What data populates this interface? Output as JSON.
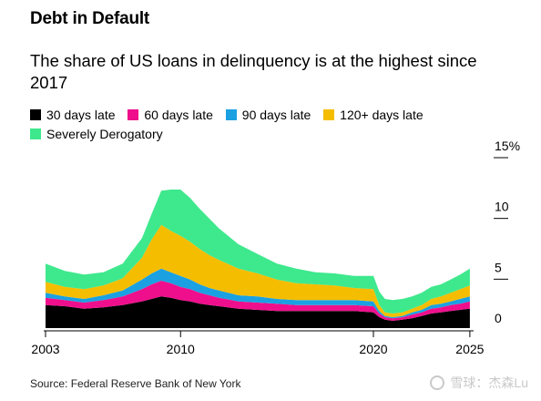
{
  "title": "Debt in Default",
  "subtitle": "The share of US loans in delinquency is at the highest since 2017",
  "source": "Source: Federal Reserve Bank of New York",
  "watermark": "雪球：杰森Lu",
  "chart_data": {
    "type": "area",
    "stacked": true,
    "x": [
      2003.0,
      2004.0,
      2005.0,
      2006.0,
      2007.0,
      2008.0,
      2008.5,
      2009.0,
      2009.5,
      2010.0,
      2010.5,
      2011.0,
      2011.5,
      2012.0,
      2013.0,
      2014.0,
      2015.0,
      2016.0,
      2017.0,
      2018.0,
      2019.0,
      2020.0,
      2020.3,
      2020.6,
      2021.0,
      2021.5,
      2022.0,
      2022.5,
      2023.0,
      2023.5,
      2024.0,
      2024.5,
      2025.0
    ],
    "series": [
      {
        "name": "30 days late",
        "color": "#000000",
        "values": [
          1.9,
          1.8,
          1.6,
          1.7,
          1.9,
          2.2,
          2.4,
          2.6,
          2.5,
          2.3,
          2.2,
          2.0,
          1.9,
          1.8,
          1.6,
          1.5,
          1.4,
          1.4,
          1.4,
          1.4,
          1.4,
          1.3,
          0.9,
          0.7,
          0.6,
          0.7,
          0.8,
          1.0,
          1.2,
          1.3,
          1.4,
          1.5,
          1.6
        ]
      },
      {
        "name": "60 days late",
        "color": "#ef0f8c",
        "values": [
          0.6,
          0.5,
          0.5,
          0.6,
          0.7,
          1.0,
          1.2,
          1.3,
          1.2,
          1.1,
          1.0,
          0.9,
          0.8,
          0.7,
          0.6,
          0.6,
          0.6,
          0.5,
          0.5,
          0.5,
          0.5,
          0.5,
          0.3,
          0.2,
          0.2,
          0.2,
          0.3,
          0.3,
          0.4,
          0.4,
          0.5,
          0.5,
          0.6
        ]
      },
      {
        "name": "90 days late",
        "color": "#1ba1e2",
        "values": [
          0.4,
          0.3,
          0.3,
          0.4,
          0.5,
          0.8,
          0.9,
          1.0,
          0.9,
          0.9,
          0.8,
          0.7,
          0.6,
          0.6,
          0.5,
          0.5,
          0.4,
          0.4,
          0.4,
          0.4,
          0.4,
          0.4,
          0.2,
          0.1,
          0.1,
          0.1,
          0.2,
          0.2,
          0.3,
          0.3,
          0.3,
          0.4,
          0.4
        ]
      },
      {
        "name": "120+ days late",
        "color": "#f5bd00",
        "values": [
          0.9,
          0.8,
          0.8,
          0.8,
          1.0,
          1.8,
          2.8,
          3.6,
          3.4,
          3.3,
          3.1,
          2.9,
          2.7,
          2.5,
          2.2,
          1.9,
          1.6,
          1.4,
          1.3,
          1.2,
          1.0,
          1.0,
          0.5,
          0.3,
          0.3,
          0.3,
          0.3,
          0.4,
          0.5,
          0.6,
          0.7,
          0.8,
          0.9
        ]
      },
      {
        "name": "Severely Derogatory",
        "color": "#3ee88d",
        "values": [
          1.5,
          1.3,
          1.2,
          1.1,
          1.2,
          1.6,
          2.1,
          2.8,
          3.4,
          3.8,
          3.6,
          3.3,
          3.0,
          2.6,
          2.0,
          1.6,
          1.3,
          1.2,
          1.0,
          1.0,
          1.0,
          1.1,
          1.1,
          1.1,
          1.1,
          1.1,
          1.0,
          1.0,
          1.0,
          1.0,
          1.1,
          1.2,
          1.4
        ]
      }
    ],
    "xlim": [
      2003,
      2025.1
    ],
    "ylim": [
      0,
      15
    ],
    "x_ticks": [
      "2003",
      "2010",
      "2020",
      "2025"
    ],
    "y_ticks": [
      "0",
      "5",
      "10",
      "15%"
    ],
    "y_axis_side": "right",
    "legend_position": "top-left",
    "grid": false
  }
}
